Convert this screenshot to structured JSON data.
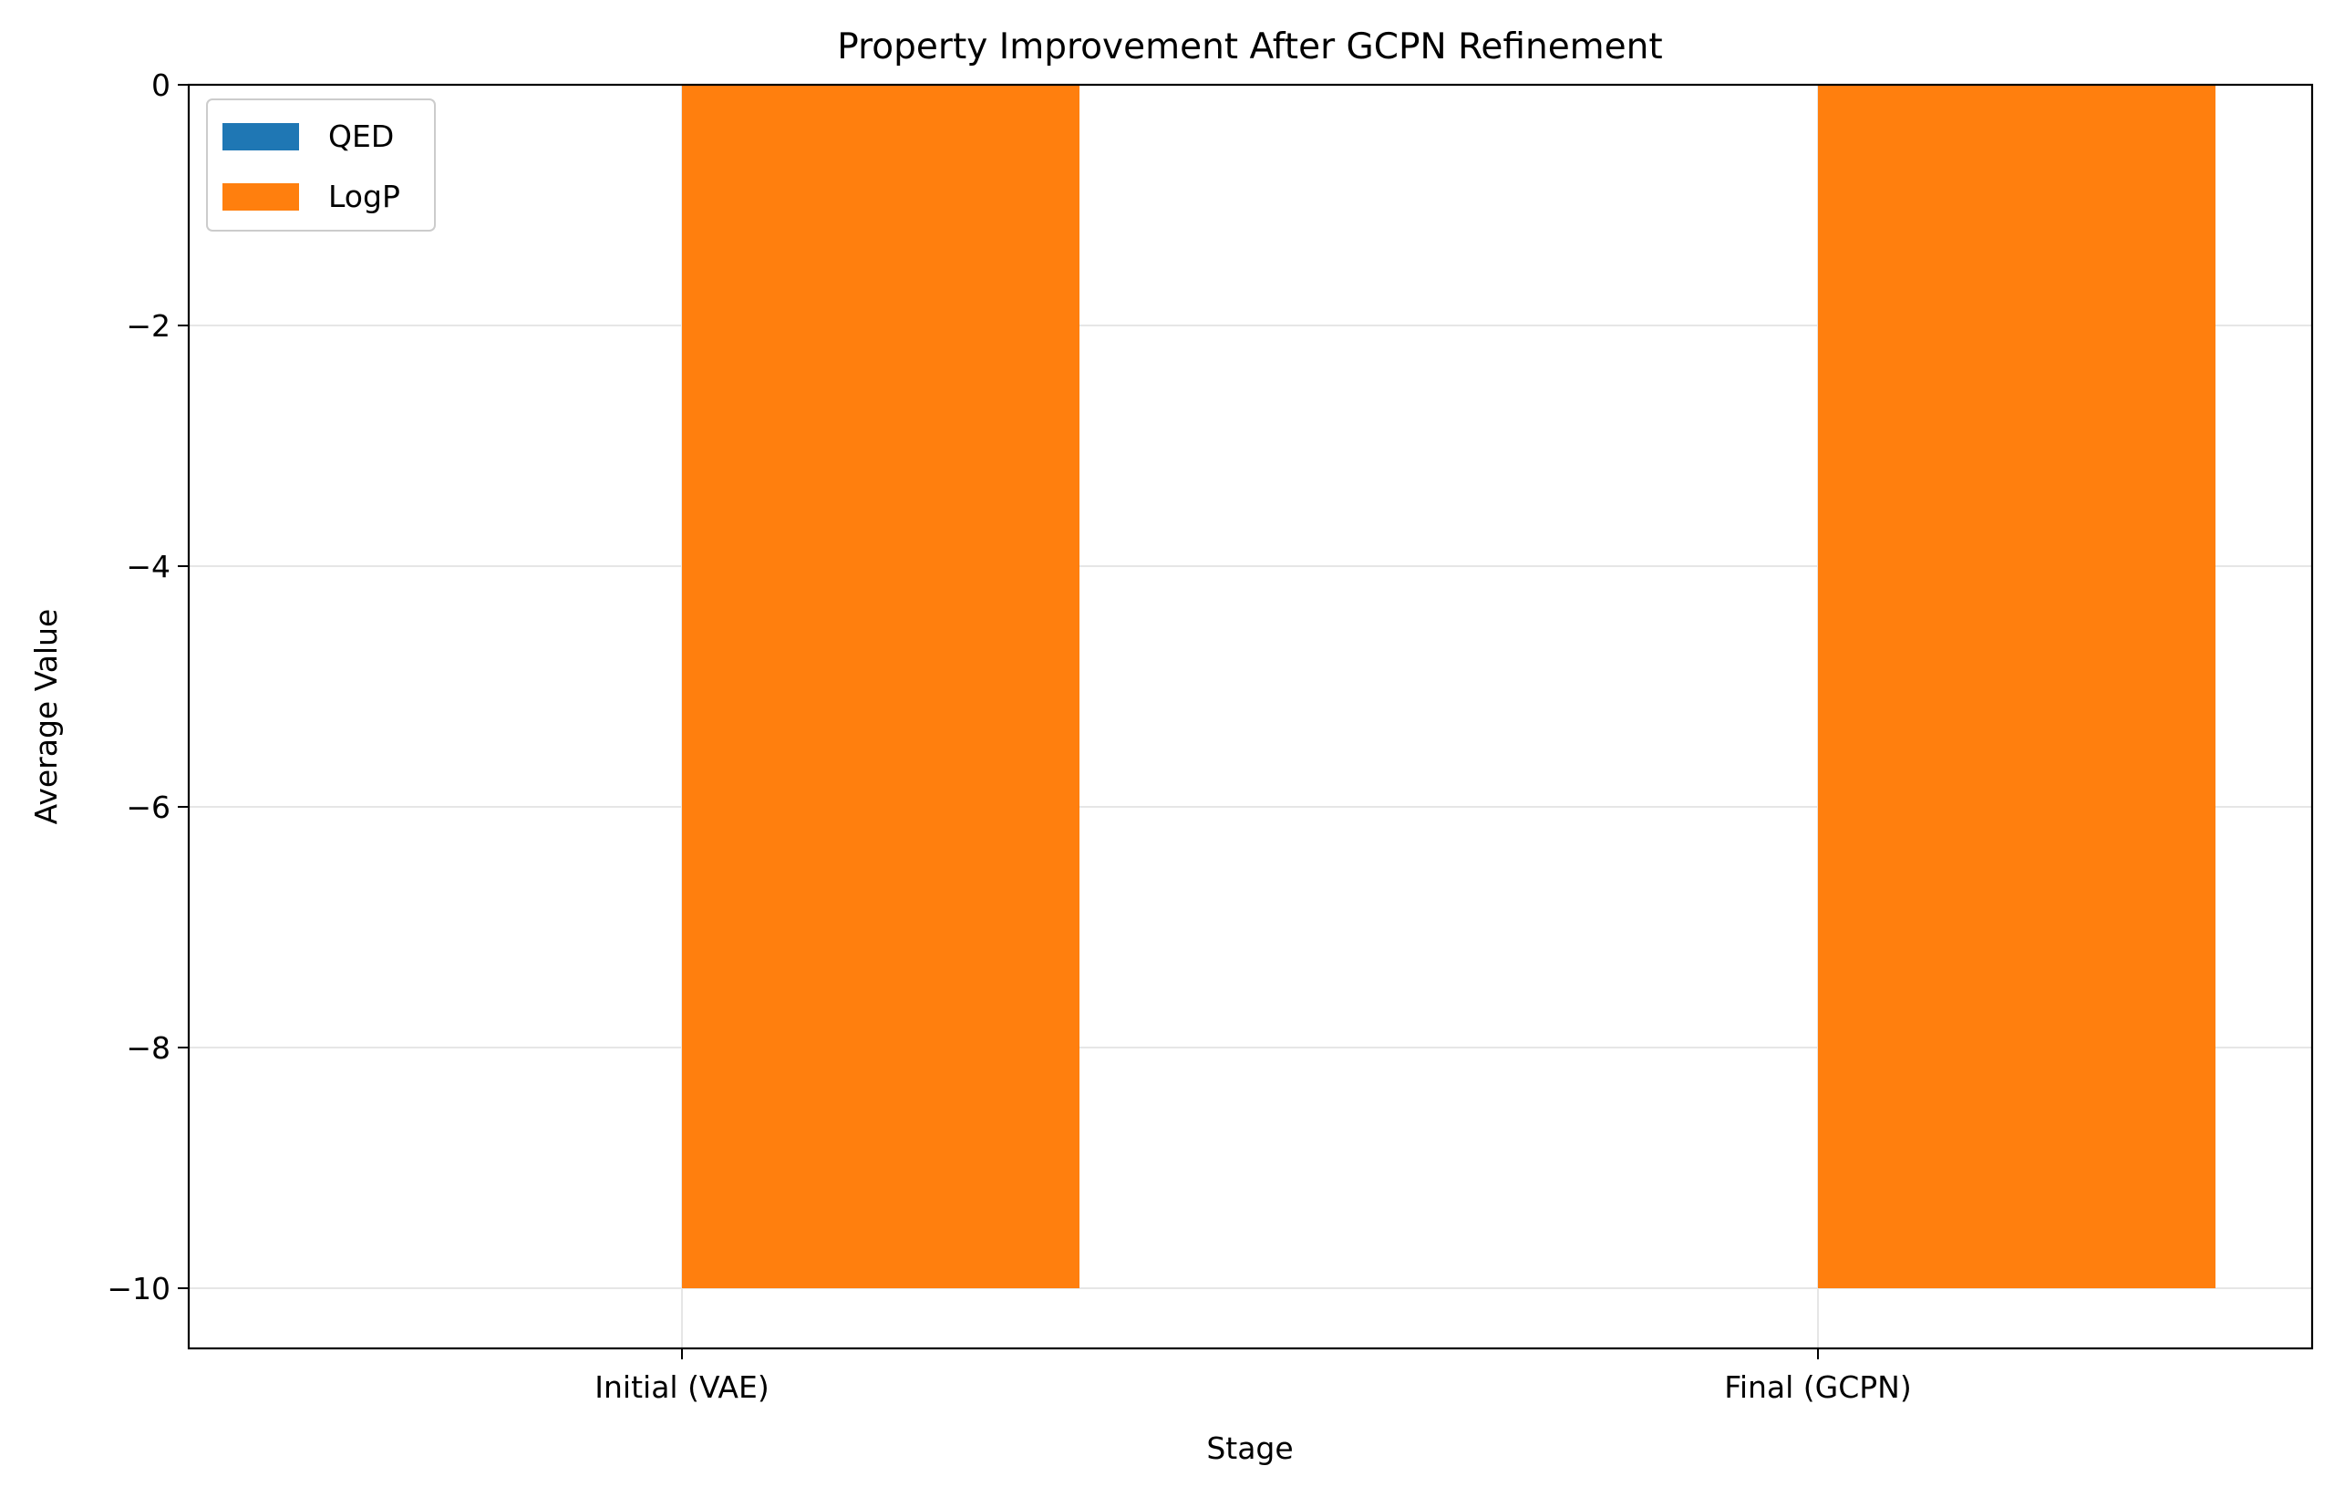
{
  "chart_data": {
    "type": "bar",
    "title": "Property Improvement After GCPN Refinement",
    "xlabel": "Stage",
    "ylabel": "Average Value",
    "categories": [
      "Initial (VAE)",
      "Final (GCPN)"
    ],
    "series": [
      {
        "name": "QED",
        "values": [
          0,
          0
        ],
        "color": "#1f77b4"
      },
      {
        "name": "LogP",
        "values": [
          -10,
          -10
        ],
        "color": "#ff7f0e"
      }
    ],
    "ylim": [
      -10.5,
      0
    ],
    "yticks": [
      0,
      -2,
      -4,
      -6,
      -8,
      -10
    ],
    "ytick_labels": [
      "0",
      "−2",
      "−4",
      "−6",
      "−8",
      "−10"
    ],
    "grid": true,
    "legend_position": "top-left"
  }
}
